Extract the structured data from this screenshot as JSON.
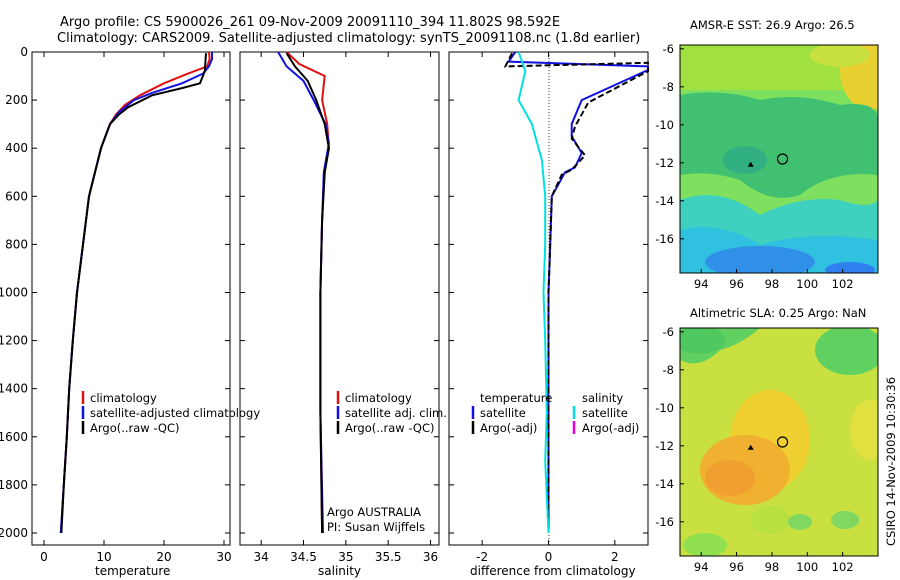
{
  "title": {
    "line1": "Argo profile: CS 5900026_261 09-Nov-2009 20091110_394 11.802S 98.592E",
    "line2": "Climatology: CARS2009. Satellite-adjusted climatology: synTS_20091108.nc (1.8d earlier)"
  },
  "side_label": "CSIRO 14-Nov-2009 10:30:36",
  "colors": {
    "climatology": "#e01010",
    "satellite": "#1010e0",
    "argo": "#000000",
    "sal_sat": "#00e0e0",
    "sal_argo": "#e000e0"
  },
  "chart_data": [
    {
      "type": "line",
      "xlabel": "temperature",
      "xlim": [
        -2,
        31
      ],
      "ylim": [
        2050,
        0
      ],
      "xticks": [
        "0",
        "10",
        "20",
        "30"
      ],
      "yticks": [
        "0",
        "200",
        "400",
        "600",
        "800",
        "1000",
        "1200",
        "1400",
        "1600",
        "1800",
        "2000"
      ],
      "legend": [
        "climatology",
        "satellite-adjusted climatology",
        "Argo(..raw -QC)"
      ],
      "series": [
        {
          "name": "climatology",
          "color": "red",
          "points": [
            [
              27.5,
              0
            ],
            [
              27.6,
              30
            ],
            [
              27.2,
              60
            ],
            [
              24,
              90
            ],
            [
              20,
              130
            ],
            [
              16,
              180
            ],
            [
              13.5,
              220
            ],
            [
              12,
              260
            ],
            [
              11,
              300
            ],
            [
              9.5,
              400
            ],
            [
              8.5,
              500
            ],
            [
              7.5,
              600
            ],
            [
              6.5,
              800
            ],
            [
              5.5,
              1000
            ],
            [
              4.8,
              1200
            ],
            [
              4.2,
              1400
            ],
            [
              3.8,
              1600
            ],
            [
              3.3,
              1800
            ],
            [
              2.8,
              2000
            ]
          ]
        },
        {
          "name": "satellite-adjusted climatology",
          "color": "blue",
          "points": [
            [
              28,
              0
            ],
            [
              28,
              30
            ],
            [
              27.5,
              60
            ],
            [
              26.5,
              90
            ],
            [
              23,
              130
            ],
            [
              18,
              170
            ],
            [
              15,
              200
            ],
            [
              12.5,
              250
            ],
            [
              11,
              300
            ],
            [
              9.5,
              400
            ],
            [
              8.5,
              500
            ],
            [
              7.5,
              600
            ],
            [
              6.5,
              800
            ],
            [
              5.5,
              1000
            ],
            [
              4.8,
              1200
            ],
            [
              4.2,
              1400
            ],
            [
              3.8,
              1600
            ],
            [
              3.3,
              1800
            ],
            [
              2.8,
              2000
            ]
          ]
        },
        {
          "name": "Argo(..raw -QC)",
          "color": "black",
          "points": [
            [
              27,
              5
            ],
            [
              26.8,
              80
            ],
            [
              26,
              130
            ],
            [
              23,
              150
            ],
            [
              18,
              180
            ],
            [
              14,
              230
            ],
            [
              12.5,
              260
            ],
            [
              11,
              300
            ],
            [
              9.5,
              400
            ],
            [
              8.5,
              500
            ],
            [
              7.5,
              600
            ],
            [
              6.5,
              800
            ],
            [
              5.5,
              1000
            ],
            [
              4.8,
              1200
            ],
            [
              4.2,
              1400
            ],
            [
              3.8,
              1600
            ],
            [
              3.3,
              1800
            ],
            [
              2.9,
              2000
            ]
          ]
        }
      ]
    },
    {
      "type": "line",
      "xlabel": "salinity",
      "xlim": [
        33.75,
        36.1
      ],
      "ylim": [
        2050,
        0
      ],
      "xticks": [
        "34",
        "34.5",
        "35",
        "35.5",
        "36"
      ],
      "legend": [
        "climatology",
        "satellite adj. clim.",
        "Argo(..raw -QC)"
      ],
      "annotations": [
        "Argo AUSTRALIA",
        "PI: Susan Wijffels"
      ],
      "series": [
        {
          "name": "climatology",
          "color": "red",
          "points": [
            [
              34.3,
              0
            ],
            [
              34.45,
              50
            ],
            [
              34.75,
              100
            ],
            [
              34.72,
              200
            ],
            [
              34.78,
              300
            ],
            [
              34.8,
              400
            ],
            [
              34.75,
              500
            ],
            [
              34.72,
              700
            ],
            [
              34.7,
              1000
            ],
            [
              34.7,
              1500
            ],
            [
              34.72,
              2000
            ]
          ]
        },
        {
          "name": "satellite adj. clim.",
          "color": "blue",
          "points": [
            [
              34.2,
              0
            ],
            [
              34.3,
              60
            ],
            [
              34.5,
              120
            ],
            [
              34.62,
              200
            ],
            [
              34.76,
              300
            ],
            [
              34.8,
              380
            ],
            [
              34.74,
              500
            ],
            [
              34.72,
              700
            ],
            [
              34.7,
              1000
            ],
            [
              34.7,
              1500
            ],
            [
              34.73,
              2000
            ]
          ]
        },
        {
          "name": "Argo(..raw -QC)",
          "color": "black",
          "points": [
            [
              34.3,
              5
            ],
            [
              34.4,
              60
            ],
            [
              34.55,
              120
            ],
            [
              34.65,
              200
            ],
            [
              34.75,
              300
            ],
            [
              34.8,
              400
            ],
            [
              34.75,
              500
            ],
            [
              34.72,
              700
            ],
            [
              34.7,
              1000
            ],
            [
              34.7,
              1500
            ],
            [
              34.72,
              2000
            ]
          ]
        }
      ]
    },
    {
      "type": "line",
      "xlabel": "difference from climatology",
      "xlim": [
        -3,
        3
      ],
      "ylim": [
        2050,
        0
      ],
      "xticks": [
        "-2",
        "0",
        "2"
      ],
      "legend_temperature": [
        "temperature",
        "satellite",
        "Argo(-adj)"
      ],
      "legend_salinity": [
        "salinity",
        "satellite",
        "Argo(-adj)"
      ],
      "series": [
        {
          "name": "temperature satellite",
          "color": "blue",
          "points": [
            [
              -1,
              0
            ],
            [
              -1.2,
              40
            ],
            [
              3,
              60
            ],
            [
              3,
              75
            ],
            [
              1,
              200
            ],
            [
              0.7,
              300
            ],
            [
              0.7,
              350
            ],
            [
              1,
              420
            ],
            [
              0.8,
              480
            ],
            [
              0.5,
              500
            ],
            [
              0.1,
              600
            ],
            [
              0.05,
              800
            ],
            [
              0,
              1000
            ],
            [
              0,
              1500
            ],
            [
              0,
              2000
            ]
          ]
        },
        {
          "name": "temperature Argo(-adj)",
          "color": "black",
          "points": [
            [
              -1.1,
              5
            ],
            [
              -1.3,
              60
            ],
            [
              3,
              45
            ],
            [
              3,
              80
            ],
            [
              1.2,
              210
            ],
            [
              0.8,
              310
            ],
            [
              0.7,
              360
            ],
            [
              1.1,
              430
            ],
            [
              0.7,
              490
            ],
            [
              0.4,
              510
            ],
            [
              0.1,
              600
            ],
            [
              0.05,
              800
            ],
            [
              0,
              1000
            ],
            [
              0,
              1500
            ],
            [
              0,
              2000
            ]
          ]
        },
        {
          "name": "salinity satellite",
          "color": "cyan",
          "points": [
            [
              -0.9,
              0
            ],
            [
              -0.7,
              80
            ],
            [
              -0.9,
              200
            ],
            [
              -0.5,
              300
            ],
            [
              -0.2,
              450
            ],
            [
              -0.1,
              600
            ],
            [
              -0.1,
              800
            ],
            [
              -0.15,
              1000
            ],
            [
              -0.1,
              1200
            ],
            [
              -0.05,
              1500
            ],
            [
              -0.1,
              1700
            ],
            [
              0,
              2000
            ]
          ]
        }
      ]
    },
    {
      "type": "heatmap",
      "title": "AMSR-E SST: 26.9 Argo: 26.5",
      "xlim": [
        92.8,
        104
      ],
      "ylim": [
        -17.8,
        -5.8
      ],
      "xticks": [
        "94",
        "96",
        "98",
        "100",
        "102"
      ],
      "yticks": [
        "-6",
        "-8",
        "-10",
        "-12",
        "-14",
        "-16"
      ],
      "marker": {
        "lon": 98.6,
        "lat": -11.8
      },
      "track": {
        "lon": 96.8,
        "lat": -12.1
      }
    },
    {
      "type": "heatmap",
      "title": "Altimetric SLA: 0.25 Argo: NaN",
      "xlim": [
        92.8,
        104
      ],
      "ylim": [
        -17.8,
        -5.8
      ],
      "xticks": [
        "94",
        "96",
        "98",
        "100",
        "102"
      ],
      "yticks": [
        "-6",
        "-8",
        "-10",
        "-12",
        "-14",
        "-16"
      ],
      "marker": {
        "lon": 98.6,
        "lat": -11.8
      },
      "track": {
        "lon": 96.8,
        "lat": -12.1
      }
    }
  ]
}
